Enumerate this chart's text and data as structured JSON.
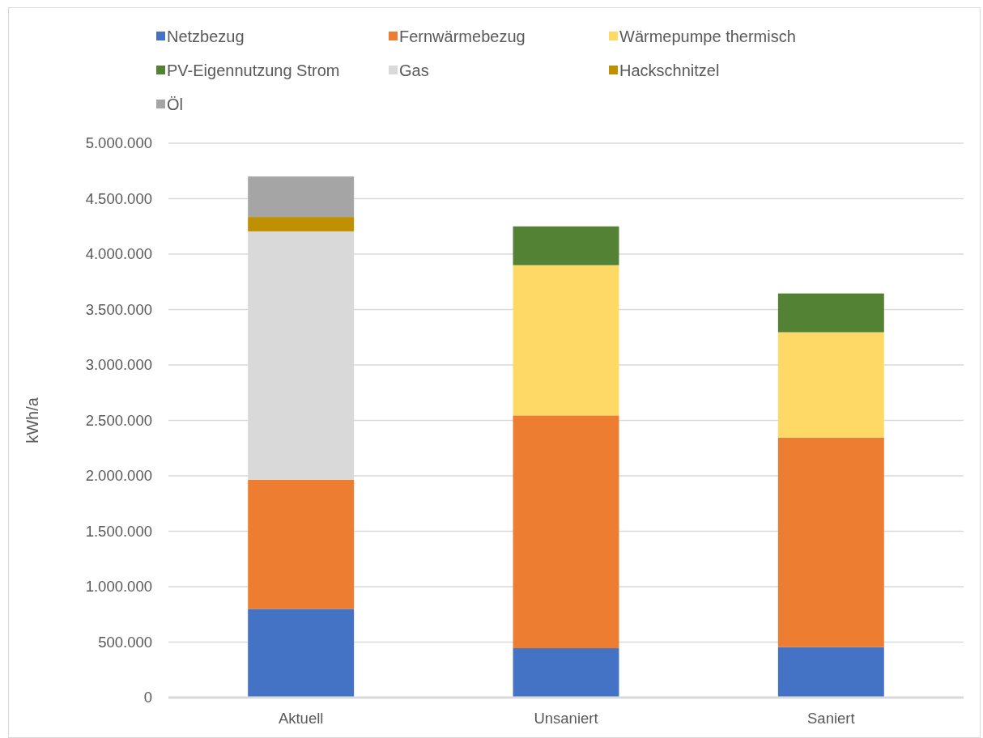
{
  "chart_data": {
    "type": "bar",
    "stacked": true,
    "ylabel": "kWh/a",
    "categories": [
      "Aktuell",
      "Unsaniert",
      "Saniert"
    ],
    "series": [
      {
        "name": "Netzbezug",
        "color": "#4472c4",
        "values": [
          800000,
          445000,
          455000
        ]
      },
      {
        "name": "Fernwärmebezug",
        "color": "#ed7d31",
        "values": [
          1165000,
          2100000,
          1890000
        ]
      },
      {
        "name": "Wärmepumpe thermisch",
        "color": "#ffd966",
        "values": [
          null,
          1355000,
          950000
        ]
      },
      {
        "name": "PV-Eigennutzung Strom",
        "color": "#548235",
        "values": [
          null,
          350000,
          350000
        ]
      },
      {
        "name": "Gas",
        "color": "#d9d9d9",
        "values": [
          2240000,
          null,
          null
        ]
      },
      {
        "name": "Hackschnitzel",
        "color": "#bf9000",
        "values": [
          130000,
          null,
          null
        ]
      },
      {
        "name": "Öl",
        "color": "#a5a5a5",
        "values": [
          365000,
          null,
          null
        ]
      }
    ],
    "ylim": [
      0,
      5000000
    ],
    "yticks": [
      0,
      {
        "value": 500000,
        "label": "500.000"
      },
      {
        "value": 1000000,
        "label": "1.000.000"
      },
      {
        "value": 1500000,
        "label": "1.500.000"
      },
      {
        "value": 2000000,
        "label": "2.000.000"
      },
      {
        "value": 2500000,
        "label": "2.500.000"
      },
      {
        "value": 3000000,
        "label": "3.000.000"
      },
      {
        "value": 3500000,
        "label": "3.500.000"
      },
      {
        "value": 4000000,
        "label": "4.000.000"
      },
      {
        "value": 4500000,
        "label": "4.500.000"
      },
      {
        "value": 5000000,
        "label": "5.000.000"
      }
    ],
    "grid": "y",
    "legend": "top"
  }
}
